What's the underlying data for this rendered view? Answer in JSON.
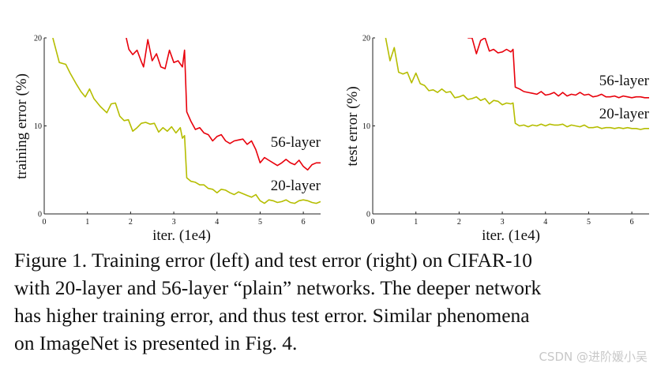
{
  "chart_data": [
    {
      "type": "line",
      "title": "",
      "xlabel": "iter. (1e4)",
      "ylabel": "training error (%)",
      "xlim": [
        0,
        6.4
      ],
      "ylim": [
        0,
        20
      ],
      "x_ticks": [
        0,
        1,
        2,
        3,
        4,
        5,
        6
      ],
      "y_ticks": [
        0,
        10,
        20
      ],
      "grid": false,
      "series": [
        {
          "name": "56-layer",
          "color": "#e8000b",
          "x": [
            1.9,
            1.96,
            2.05,
            2.15,
            2.25,
            2.3,
            2.4,
            2.5,
            2.6,
            2.7,
            2.8,
            2.9,
            3.0,
            3.1,
            3.2,
            3.25,
            3.3,
            3.4,
            3.5,
            3.6,
            3.7,
            3.8,
            3.9,
            4.0,
            4.1,
            4.2,
            4.3,
            4.4,
            4.5,
            4.6,
            4.7,
            4.8,
            4.9,
            5.0,
            5.1,
            5.2,
            5.3,
            5.4,
            5.5,
            5.6,
            5.7,
            5.8,
            5.9,
            6.0,
            6.1,
            6.2,
            6.3,
            6.4
          ],
          "values": [
            20,
            18.7,
            18.1,
            18.6,
            17.3,
            16.7,
            19.8,
            17.4,
            18.2,
            16.7,
            16.5,
            18.6,
            17.2,
            17.4,
            16.7,
            18.6,
            11.6,
            10.5,
            9.6,
            9.8,
            9.2,
            9.0,
            8.3,
            8.8,
            9.0,
            8.3,
            8.0,
            8.3,
            8.4,
            8.5,
            7.9,
            8.3,
            7.3,
            5.8,
            6.4,
            6.1,
            5.8,
            5.5,
            5.8,
            6.2,
            5.8,
            5.6,
            6.1,
            5.4,
            5.0,
            5.6,
            5.8,
            5.8
          ]
        },
        {
          "name": "20-layer",
          "color": "#b5bd00",
          "x": [
            0.2,
            0.35,
            0.5,
            0.6,
            0.75,
            0.85,
            0.95,
            1.05,
            1.15,
            1.3,
            1.45,
            1.55,
            1.65,
            1.75,
            1.85,
            1.95,
            2.05,
            2.15,
            2.25,
            2.35,
            2.45,
            2.55,
            2.65,
            2.75,
            2.85,
            2.95,
            3.05,
            3.15,
            3.2,
            3.25,
            3.3,
            3.4,
            3.5,
            3.6,
            3.7,
            3.8,
            3.9,
            4.0,
            4.1,
            4.2,
            4.3,
            4.4,
            4.5,
            4.6,
            4.7,
            4.8,
            4.9,
            5.0,
            5.1,
            5.2,
            5.3,
            5.4,
            5.5,
            5.6,
            5.7,
            5.8,
            5.9,
            6.0,
            6.1,
            6.2,
            6.3,
            6.4
          ],
          "values": [
            20,
            17.2,
            17.0,
            16.0,
            14.7,
            13.9,
            13.3,
            14.2,
            13.1,
            12.2,
            11.5,
            12.5,
            12.6,
            11.1,
            10.6,
            10.7,
            9.4,
            9.8,
            10.3,
            10.4,
            10.2,
            10.3,
            9.3,
            9.8,
            9.4,
            9.9,
            9.2,
            9.8,
            8.6,
            8.9,
            4.1,
            3.7,
            3.6,
            3.3,
            3.3,
            2.9,
            2.8,
            2.4,
            2.8,
            2.7,
            2.4,
            2.2,
            2.5,
            2.3,
            2.1,
            1.9,
            2.2,
            1.5,
            1.2,
            1.6,
            1.5,
            1.3,
            1.4,
            1.6,
            1.3,
            1.2,
            1.5,
            1.6,
            1.5,
            1.3,
            1.2,
            1.4
          ]
        }
      ]
    },
    {
      "type": "line",
      "title": "",
      "xlabel": "iter. (1e4)",
      "ylabel": "test error (%)",
      "xlim": [
        0,
        6.4
      ],
      "ylim": [
        0,
        20
      ],
      "x_ticks": [
        0,
        1,
        2,
        3,
        4,
        5,
        6
      ],
      "y_ticks": [
        0,
        10,
        20
      ],
      "grid": false,
      "series": [
        {
          "name": "56-layer",
          "color": "#e8000b",
          "x": [
            2.2,
            2.3,
            2.4,
            2.5,
            2.6,
            2.7,
            2.8,
            2.9,
            3.0,
            3.1,
            3.2,
            3.25,
            3.3,
            3.4,
            3.5,
            3.6,
            3.7,
            3.8,
            3.9,
            4.0,
            4.1,
            4.2,
            4.3,
            4.4,
            4.5,
            4.6,
            4.7,
            4.8,
            4.9,
            5.0,
            5.1,
            5.2,
            5.3,
            5.4,
            5.5,
            5.6,
            5.7,
            5.8,
            5.9,
            6.0,
            6.1,
            6.2,
            6.3,
            6.4
          ],
          "values": [
            20,
            20.0,
            18.2,
            19.7,
            20.0,
            18.5,
            18.7,
            18.3,
            18.4,
            18.7,
            18.4,
            18.7,
            14.4,
            14.2,
            13.9,
            13.8,
            13.7,
            13.6,
            13.9,
            13.5,
            13.6,
            13.8,
            13.4,
            13.8,
            13.4,
            13.6,
            13.5,
            13.8,
            13.5,
            13.6,
            13.3,
            13.4,
            13.6,
            13.3,
            13.3,
            13.4,
            13.2,
            13.4,
            13.3,
            13.2,
            13.3,
            13.3,
            13.2,
            13.2
          ]
        },
        {
          "name": "20-layer",
          "color": "#b5bd00",
          "x": [
            0.3,
            0.4,
            0.5,
            0.6,
            0.7,
            0.8,
            0.9,
            1.0,
            1.1,
            1.2,
            1.3,
            1.4,
            1.5,
            1.6,
            1.7,
            1.8,
            1.9,
            2.0,
            2.1,
            2.2,
            2.3,
            2.4,
            2.5,
            2.6,
            2.7,
            2.8,
            2.9,
            3.0,
            3.1,
            3.2,
            3.25,
            3.3,
            3.4,
            3.5,
            3.6,
            3.7,
            3.8,
            3.9,
            4.0,
            4.1,
            4.2,
            4.3,
            4.4,
            4.5,
            4.6,
            4.7,
            4.8,
            4.9,
            5.0,
            5.1,
            5.2,
            5.3,
            5.4,
            5.5,
            5.6,
            5.7,
            5.8,
            5.9,
            6.0,
            6.1,
            6.2,
            6.3,
            6.4
          ],
          "values": [
            20,
            17.4,
            18.9,
            16.1,
            15.9,
            16.1,
            14.9,
            16.0,
            14.8,
            14.6,
            14.0,
            14.1,
            13.8,
            14.2,
            13.8,
            13.9,
            13.2,
            13.3,
            13.5,
            13.0,
            13.1,
            13.3,
            12.9,
            13.1,
            12.5,
            12.9,
            12.8,
            12.4,
            12.6,
            12.5,
            12.6,
            10.3,
            10.0,
            10.1,
            9.9,
            10.1,
            10.0,
            10.2,
            10.0,
            10.2,
            10.1,
            10.1,
            10.2,
            9.9,
            10.1,
            10.0,
            9.9,
            10.1,
            9.8,
            9.8,
            9.9,
            9.7,
            9.8,
            9.8,
            9.7,
            9.8,
            9.7,
            9.8,
            9.7,
            9.7,
            9.6,
            9.7,
            9.7
          ]
        }
      ]
    }
  ],
  "caption": {
    "line1": "Figure 1. Training error (left) and test error (right) on CIFAR-10",
    "line2": "with 20-layer and 56-layer “plain” networks. The deeper network",
    "line3": "has higher training error, and thus test error.  Similar phenomena",
    "line4": "on ImageNet is presented in Fig. 4."
  },
  "watermark": "CSDN @进阶媛小吴"
}
